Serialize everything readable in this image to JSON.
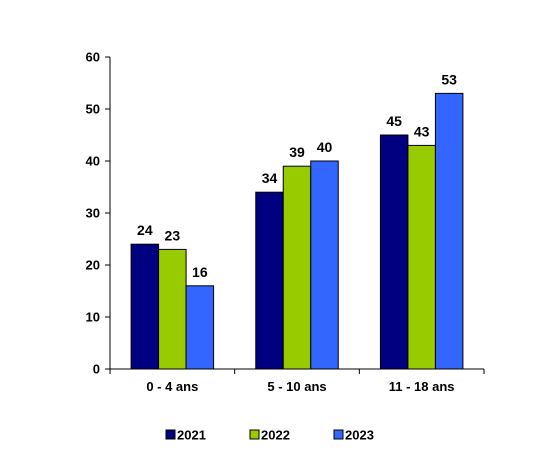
{
  "chart_data": {
    "type": "bar",
    "title": "",
    "xlabel": "",
    "ylabel": "",
    "categories": [
      "0 - 4 ans",
      "5 - 10 ans",
      "11 - 18 ans"
    ],
    "series": [
      {
        "name": "2021",
        "values": [
          24,
          34,
          45
        ],
        "color": "#000080"
      },
      {
        "name": "2022",
        "values": [
          23,
          39,
          43
        ],
        "color": "#99CC00"
      },
      {
        "name": "2023",
        "values": [
          16,
          40,
          53
        ],
        "color": "#3366FF"
      }
    ],
    "ylim": [
      0,
      60
    ],
    "yticks": [
      "0",
      "10",
      "20",
      "30",
      "40",
      "50",
      "60"
    ],
    "grid": false,
    "legend_position": "bottom"
  }
}
